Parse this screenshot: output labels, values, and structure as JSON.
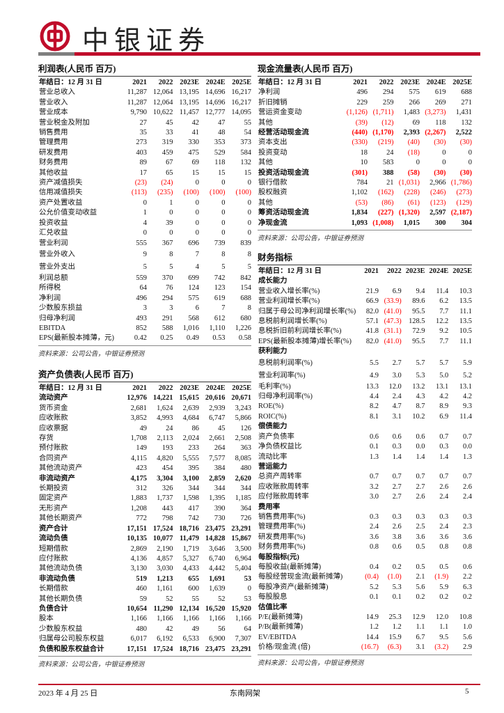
{
  "header": {
    "brand": "中银证券",
    "brand_color": "#c00d2b",
    "logo_icon": "bank-of-china-logo"
  },
  "income": {
    "title": "利润表(人民币 百万)",
    "header": [
      "年结日：12 月 31 日",
      "2021",
      "2022",
      "2023E",
      "2024E",
      "2025E"
    ],
    "rows": [
      {
        "c": [
          "营业总收入",
          "11,287",
          "12,064",
          "13,195",
          "14,696",
          "16,217"
        ]
      },
      {
        "c": [
          "营业收入",
          "11,287",
          "12,064",
          "13,195",
          "14,696",
          "16,217"
        ]
      },
      {
        "c": [
          "营业成本",
          "9,790",
          "10,622",
          "11,457",
          "12,777",
          "14,095"
        ]
      },
      {
        "c": [
          "营业税金及附加",
          "27",
          "45",
          "42",
          "47",
          "55"
        ]
      },
      {
        "c": [
          "销售费用",
          "35",
          "33",
          "41",
          "48",
          "54"
        ]
      },
      {
        "c": [
          "管理费用",
          "273",
          "319",
          "330",
          "353",
          "373"
        ]
      },
      {
        "c": [
          "研发费用",
          "403",
          "459",
          "475",
          "529",
          "584"
        ]
      },
      {
        "c": [
          "财务费用",
          "89",
          "67",
          "69",
          "118",
          "132"
        ]
      },
      {
        "c": [
          "其他收益",
          "17",
          "65",
          "15",
          "15",
          "15"
        ]
      },
      {
        "c": [
          "资产减值损失",
          "(23)",
          "(24)",
          "0",
          "0",
          "0"
        ]
      },
      {
        "c": [
          "信用减值损失",
          "(113)",
          "(235)",
          "(100)",
          "(100)",
          "(100)"
        ]
      },
      {
        "c": [
          "资产处置收益",
          "0",
          "1",
          "0",
          "0",
          "0"
        ]
      },
      {
        "c": [
          "公允价值变动收益",
          "1",
          "0",
          "0",
          "0",
          "0"
        ]
      },
      {
        "c": [
          "投资收益",
          "4",
          "39",
          "0",
          "0",
          "0"
        ]
      },
      {
        "c": [
          "汇兑收益",
          "0",
          "0",
          "0",
          "0",
          "0"
        ]
      },
      {
        "c": [
          "营业利润",
          "555",
          "367",
          "696",
          "739",
          "839"
        ]
      },
      {
        "c": [
          "营业外收入",
          "9",
          "8",
          "7",
          "8",
          "8"
        ],
        "tall": true
      },
      {
        "c": [
          "营业外支出",
          "5",
          "5",
          "4",
          "5",
          "5"
        ],
        "tall": true
      },
      {
        "c": [
          "利润总额",
          "559",
          "370",
          "699",
          "742",
          "842"
        ]
      },
      {
        "c": [
          "所得税",
          "64",
          "76",
          "124",
          "123",
          "154"
        ]
      },
      {
        "c": [
          "净利润",
          "496",
          "294",
          "575",
          "619",
          "688"
        ]
      },
      {
        "c": [
          "少数股东损益",
          "3",
          "3",
          "6",
          "7",
          "8"
        ]
      },
      {
        "c": [
          "归母净利润",
          "493",
          "291",
          "568",
          "612",
          "680"
        ]
      },
      {
        "c": [
          "EBITDA",
          "852",
          "588",
          "1,016",
          "1,110",
          "1,226"
        ]
      },
      {
        "c": [
          "EPS(最新股本摊薄，元)",
          "0.42",
          "0.25",
          "0.49",
          "0.53",
          "0.58"
        ]
      }
    ],
    "source": "资料来源：公司公告，中银证券预测"
  },
  "balance": {
    "title": "资产负债表(人民币 百万)",
    "header": [
      "年结日：12 月 31 日",
      "2021",
      "2022",
      "2023E",
      "2024E",
      "2025E"
    ],
    "rows": [
      {
        "c": [
          "流动资产",
          "12,976",
          "14,221",
          "15,615",
          "20,616",
          "20,671"
        ],
        "bold": true
      },
      {
        "c": [
          "货币资金",
          "2,681",
          "1,624",
          "2,639",
          "2,939",
          "3,243"
        ]
      },
      {
        "c": [
          "应收账款",
          "3,852",
          "4,993",
          "4,684",
          "6,747",
          "5,866"
        ]
      },
      {
        "c": [
          "应收票据",
          "49",
          "24",
          "86",
          "45",
          "126"
        ]
      },
      {
        "c": [
          "存货",
          "1,708",
          "2,113",
          "2,024",
          "2,661",
          "2,508"
        ]
      },
      {
        "c": [
          "预付账款",
          "149",
          "193",
          "233",
          "264",
          "363"
        ]
      },
      {
        "c": [
          "合同资产",
          "4,115",
          "4,820",
          "5,555",
          "7,577",
          "8,085"
        ]
      },
      {
        "c": [
          "其他流动资产",
          "423",
          "454",
          "395",
          "384",
          "480"
        ]
      },
      {
        "c": [
          "非流动资产",
          "4,175",
          "3,304",
          "3,100",
          "2,859",
          "2,620"
        ],
        "bold": true
      },
      {
        "c": [
          "长期投资",
          "312",
          "326",
          "344",
          "344",
          "344"
        ]
      },
      {
        "c": [
          "固定资产",
          "1,883",
          "1,737",
          "1,598",
          "1,395",
          "1,185"
        ]
      },
      {
        "c": [
          "无形资产",
          "1,208",
          "443",
          "417",
          "390",
          "364"
        ]
      },
      {
        "c": [
          "其他长期资产",
          "772",
          "798",
          "742",
          "730",
          "726"
        ]
      },
      {
        "c": [
          "资产合计",
          "17,151",
          "17,524",
          "18,716",
          "23,475",
          "23,291"
        ],
        "bold": true
      },
      {
        "c": [
          "流动负债",
          "10,135",
          "10,077",
          "11,479",
          "14,828",
          "15,867"
        ],
        "bold": true
      },
      {
        "c": [
          "短期借款",
          "2,869",
          "2,190",
          "1,719",
          "3,646",
          "3,500"
        ]
      },
      {
        "c": [
          "应付账款",
          "4,136",
          "4,857",
          "5,327",
          "6,740",
          "6,964"
        ]
      },
      {
        "c": [
          "其他流动负债",
          "3,130",
          "3,030",
          "4,433",
          "4,442",
          "5,404"
        ]
      },
      {
        "c": [
          "非流动负债",
          "519",
          "1,213",
          "655",
          "1,691",
          "53"
        ],
        "bold": true
      },
      {
        "c": [
          "长期借款",
          "460",
          "1,161",
          "600",
          "1,639",
          "0"
        ]
      },
      {
        "c": [
          "其他长期负债",
          "59",
          "52",
          "55",
          "52",
          "53"
        ]
      },
      {
        "c": [
          "负债合计",
          "10,654",
          "11,290",
          "12,134",
          "16,520",
          "15,920"
        ],
        "bold": true
      },
      {
        "c": [
          "股本",
          "1,166",
          "1,166",
          "1,166",
          "1,166",
          "1,166"
        ]
      },
      {
        "c": [
          "少数股东权益",
          "480",
          "42",
          "49",
          "56",
          "64"
        ]
      },
      {
        "c": [
          "归属母公司股东权益",
          "6,017",
          "6,192",
          "6,533",
          "6,900",
          "7,307"
        ]
      },
      {
        "c": [
          "负债和股东权益合计",
          "17,151",
          "17,524",
          "18,716",
          "23,475",
          "23,291"
        ],
        "bold": true
      }
    ],
    "source": "资料来源：公司公告，中银证券预测"
  },
  "cashflow": {
    "title": "现金流量表(人民币 百万)",
    "header": [
      "年结日：12 月 31 日",
      "2021",
      "2022",
      "2023E",
      "2024E",
      "2025E"
    ],
    "rows": [
      {
        "c": [
          "净利润",
          "496",
          "294",
          "575",
          "619",
          "688"
        ]
      },
      {
        "c": [
          "折旧摊销",
          "229",
          "259",
          "266",
          "269",
          "271"
        ]
      },
      {
        "c": [
          "营运资金变动",
          "(1,126)",
          "(1,711)",
          "1,483",
          "(3,273)",
          "1,431"
        ]
      },
      {
        "c": [
          "其他",
          "(39)",
          "(12)",
          "69",
          "118",
          "132"
        ]
      },
      {
        "c": [
          "经营活动现金流",
          "(440)",
          "(1,170)",
          "2,393",
          "(2,267)",
          "2,522"
        ],
        "bold": true
      },
      {
        "c": [
          "资本支出",
          "(330)",
          "(219)",
          "(40)",
          "(30)",
          "(30)"
        ]
      },
      {
        "c": [
          "投资变动",
          "18",
          "24",
          "(18)",
          "0",
          "0"
        ]
      },
      {
        "c": [
          "其他",
          "10",
          "583",
          "0",
          "0",
          "0"
        ]
      },
      {
        "c": [
          "投资活动现金流",
          "(301)",
          "388",
          "(58)",
          "(30)",
          "(30)"
        ],
        "bold": true
      },
      {
        "c": [
          "银行借款",
          "784",
          "21",
          "(1,031)",
          "2,966",
          "(1,786)"
        ]
      },
      {
        "c": [
          "股权融资",
          "1,102",
          "(162)",
          "(228)",
          "(246)",
          "(273)"
        ]
      },
      {
        "c": [
          "其他",
          "(53)",
          "(86)",
          "(61)",
          "(123)",
          "(129)"
        ]
      },
      {
        "c": [
          "筹资活动现金流",
          "1,834",
          "(227)",
          "(1,320)",
          "2,597",
          "(2,187)"
        ],
        "bold": true
      },
      {
        "c": [
          "净现金流",
          "1,093",
          "(1,008)",
          "1,015",
          "300",
          "304"
        ],
        "bold": true
      }
    ],
    "source": "资料来源：公司公告，中银证券预测"
  },
  "ratios": {
    "title": "财务指标",
    "header": [
      "年结日：12 月 31 日",
      "2021",
      "2022",
      "2023E",
      "2024E",
      "2025E"
    ],
    "rows": [
      {
        "c": [
          "成长能力",
          "",
          "",
          "",
          "",
          ""
        ],
        "bold": true
      },
      {
        "c": [
          "营业收入增长率(%)",
          "21.9",
          "6.9",
          "9.4",
          "11.4",
          "10.3"
        ]
      },
      {
        "c": [
          "营业利润增长率(%)",
          "66.9",
          "(33.9)",
          "89.6",
          "6.2",
          "13.5"
        ]
      },
      {
        "c": [
          "归属于母公司净利润增长率(%)",
          "82.0",
          "(41.0)",
          "95.5",
          "7.7",
          "11.1"
        ]
      },
      {
        "c": [
          "息税前利润增长率(%)",
          "57.1",
          "(47.3)",
          "128.5",
          "12.2",
          "13.5"
        ]
      },
      {
        "c": [
          "息税折旧前利润增长率(%)",
          "41.8",
          "(31.1)",
          "72.9",
          "9.2",
          "10.5"
        ]
      },
      {
        "c": [
          "EPS(最新股本摊薄)增长率(%)",
          "82.0",
          "(41.0)",
          "95.5",
          "7.7",
          "11.1"
        ]
      },
      {
        "c": [
          "获利能力",
          "",
          "",
          "",
          "",
          ""
        ],
        "bold": true
      },
      {
        "c": [
          "息税前利润率(%)",
          "5.5",
          "2.7",
          "5.7",
          "5.7",
          "5.9"
        ],
        "tall": true
      },
      {
        "c": [
          "营业利润率(%)",
          "4.9",
          "3.0",
          "5.3",
          "5.0",
          "5.2"
        ],
        "tall": true
      },
      {
        "c": [
          "毛利率(%)",
          "13.3",
          "12.0",
          "13.2",
          "13.1",
          "13.1"
        ]
      },
      {
        "c": [
          "归母净利润率(%)",
          "4.4",
          "2.4",
          "4.3",
          "4.2",
          "4.2"
        ]
      },
      {
        "c": [
          "ROE(%)",
          "8.2",
          "4.7",
          "8.7",
          "8.9",
          "9.3"
        ]
      },
      {
        "c": [
          "ROIC(%)",
          "8.1",
          "3.1",
          "10.2",
          "6.9",
          "11.4"
        ]
      },
      {
        "c": [
          "偿债能力",
          "",
          "",
          "",
          "",
          ""
        ],
        "bold": true
      },
      {
        "c": [
          "资产负债率",
          "0.6",
          "0.6",
          "0.6",
          "0.7",
          "0.7"
        ]
      },
      {
        "c": [
          "净负债权益比",
          "0.1",
          "0.3",
          "0.0",
          "0.3",
          "0.0"
        ]
      },
      {
        "c": [
          "流动比率",
          "1.3",
          "1.4",
          "1.4",
          "1.4",
          "1.3"
        ]
      },
      {
        "c": [
          "营运能力",
          "",
          "",
          "",
          "",
          ""
        ],
        "bold": true
      },
      {
        "c": [
          "总资产周转率",
          "0.7",
          "0.7",
          "0.7",
          "0.7",
          "0.7"
        ]
      },
      {
        "c": [
          "应收账款周转率",
          "3.2",
          "2.7",
          "2.7",
          "2.6",
          "2.6"
        ]
      },
      {
        "c": [
          "应付账款周转率",
          "3.0",
          "2.7",
          "2.6",
          "2.4",
          "2.4"
        ]
      },
      {
        "c": [
          "费用率",
          "",
          "",
          "",
          "",
          ""
        ],
        "bold": true
      },
      {
        "c": [
          "销售费用率(%)",
          "0.3",
          "0.3",
          "0.3",
          "0.3",
          "0.3"
        ]
      },
      {
        "c": [
          "管理费用率(%)",
          "2.4",
          "2.6",
          "2.5",
          "2.4",
          "2.3"
        ]
      },
      {
        "c": [
          "研发费用率(%)",
          "3.6",
          "3.8",
          "3.6",
          "3.6",
          "3.6"
        ]
      },
      {
        "c": [
          "财务费用率(%)",
          "0.8",
          "0.6",
          "0.5",
          "0.8",
          "0.8"
        ]
      },
      {
        "c": [
          "每股指标(元)",
          "",
          "",
          "",
          "",
          ""
        ],
        "bold": true
      },
      {
        "c": [
          "每股收益(最新摊薄)",
          "0.4",
          "0.2",
          "0.5",
          "0.5",
          "0.6"
        ]
      },
      {
        "c": [
          "每股经营现金流(最新摊薄)",
          "(0.4)",
          "(1.0)",
          "2.1",
          "(1.9)",
          "2.2"
        ]
      },
      {
        "c": [
          "每股净资产(最新摊薄)",
          "5.2",
          "5.3",
          "5.6",
          "5.9",
          "6.3"
        ]
      },
      {
        "c": [
          "每股股息",
          "0.1",
          "0.1",
          "0.2",
          "0.2",
          "0.2"
        ]
      },
      {
        "c": [
          "估值比率",
          "",
          "",
          "",
          "",
          ""
        ],
        "bold": true
      },
      {
        "c": [
          "P/E(最新摊薄)",
          "14.9",
          "25.3",
          "12.9",
          "12.0",
          "10.8"
        ]
      },
      {
        "c": [
          "P/B(最新摊薄)",
          "1.2",
          "1.2",
          "1.1",
          "1.1",
          "1.0"
        ]
      },
      {
        "c": [
          "EV/EBITDA",
          "14.4",
          "15.9",
          "6.7",
          "9.5",
          "5.6"
        ]
      },
      {
        "c": [
          "价格/现金流 (倍)",
          "(16.7)",
          "(6.3)",
          "3.1",
          "(3.2)",
          "2.9"
        ]
      }
    ],
    "source": "资料来源：公司公告，中银证券预测"
  },
  "footer": {
    "date": "2023 年 4 月 25 日",
    "company": "东南网架",
    "page": "5"
  },
  "colors": {
    "negative": "#ff0000",
    "accent_red": "#c00d2b",
    "gray_bar": "#7f7f7f"
  }
}
